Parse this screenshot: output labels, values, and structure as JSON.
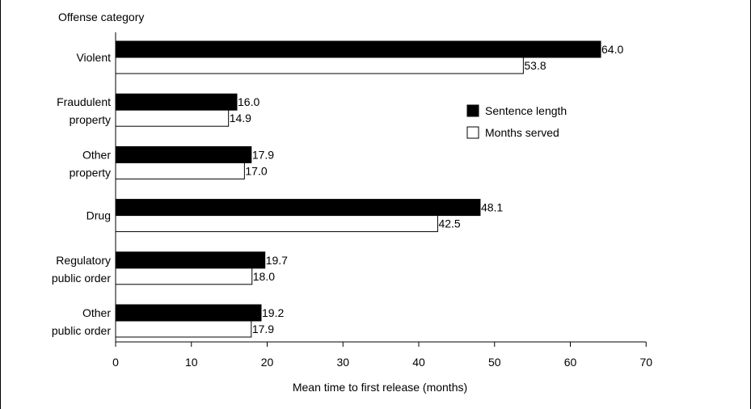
{
  "chart_data": {
    "type": "bar",
    "orientation": "horizontal",
    "categories": [
      [
        "Violent"
      ],
      [
        "Fraudulent",
        "property"
      ],
      [
        "Other",
        "property"
      ],
      [
        "Drug"
      ],
      [
        "Regulatory",
        "public order"
      ],
      [
        "Other",
        "public order"
      ]
    ],
    "series": [
      {
        "name": "Sentence length",
        "color": "#000000",
        "values": [
          64.0,
          16.0,
          17.9,
          48.1,
          19.7,
          19.2
        ],
        "labels": [
          "64.0",
          "16.0",
          "17.9",
          "48.1",
          "19.7",
          "19.2"
        ]
      },
      {
        "name": "Months served",
        "color": "#ffffff",
        "values": [
          53.8,
          14.9,
          17.0,
          42.5,
          18.0,
          17.9
        ],
        "labels": [
          "53.8",
          "14.9",
          "17.0",
          "42.5",
          "18.0",
          "17.9"
        ]
      }
    ],
    "title": "",
    "category_axis_label": "Offense category",
    "xlabel": "Mean time to first release (months)",
    "xlim": [
      0,
      70
    ],
    "xticks": [
      0,
      10,
      20,
      30,
      40,
      50,
      60,
      70
    ],
    "grid": false,
    "legend_position": "right"
  }
}
